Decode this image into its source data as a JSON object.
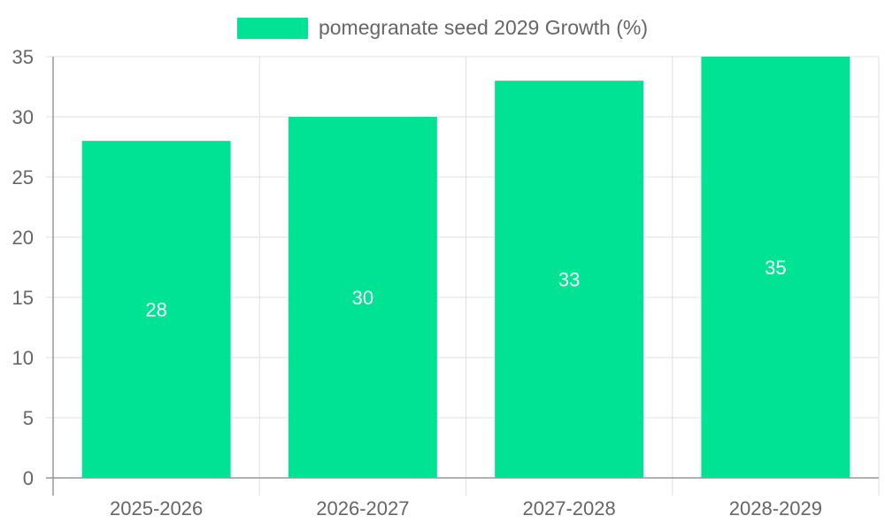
{
  "chart_data": {
    "type": "bar",
    "categories": [
      "2025-2026",
      "2026-2027",
      "2027-2028",
      "2028-2029"
    ],
    "series": [
      {
        "name": "pomegranate seed 2029 Growth (%)",
        "values": [
          28,
          30,
          33,
          35
        ]
      }
    ],
    "data_labels": [
      "28",
      "30",
      "33",
      "35"
    ],
    "ylim": [
      0,
      35
    ],
    "yticks": [
      "0",
      "5",
      "10",
      "15",
      "20",
      "25",
      "30",
      "35"
    ],
    "ytick_values": [
      0,
      5,
      10,
      15,
      20,
      25,
      30,
      35
    ],
    "legend_position": "top",
    "grid": true,
    "colors": {
      "bar": "#00e394",
      "grid": "#e0e0e0",
      "axis": "#999999",
      "tick_text": "#666666",
      "data_label": "#ffffff"
    }
  }
}
